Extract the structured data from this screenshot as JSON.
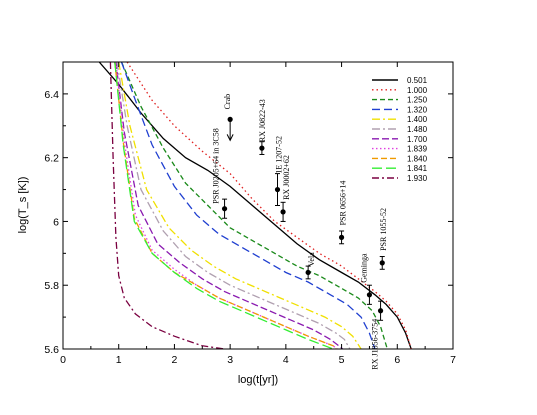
{
  "chart_data": {
    "type": "line",
    "xlabel": "log(t[yr])",
    "ylabel": "log(T_s [K])",
    "xlim": [
      0,
      7
    ],
    "ylim": [
      5.6,
      6.5
    ],
    "xticks": [
      "0",
      "1",
      "2",
      "3",
      "4",
      "5",
      "6",
      "7"
    ],
    "yticks": [
      "5.6",
      "5.8",
      "6",
      "6.2",
      "6.4"
    ],
    "legend_position": "top-right",
    "series": [
      {
        "name": "0.501",
        "color": "#000000",
        "dash": "",
        "x": [
          0.65,
          1.0,
          1.4,
          1.8,
          2.2,
          2.6,
          3.0,
          3.4,
          3.8,
          4.2,
          4.6,
          5.0,
          5.3,
          5.6,
          5.8,
          6.0,
          6.15,
          6.25
        ],
        "y": [
          6.5,
          6.43,
          6.34,
          6.26,
          6.2,
          6.16,
          6.11,
          6.05,
          5.99,
          5.93,
          5.88,
          5.84,
          5.81,
          5.77,
          5.74,
          5.7,
          5.65,
          5.6
        ]
      },
      {
        "name": "1.000",
        "color": "#e02020",
        "dash": "1.5,3",
        "x": [
          1.15,
          1.6,
          2.0,
          2.5,
          3.0,
          3.4,
          3.8,
          4.2,
          4.6,
          5.0,
          5.3,
          5.6,
          5.8,
          6.0,
          6.15,
          6.25
        ],
        "y": [
          6.5,
          6.38,
          6.3,
          6.22,
          6.15,
          6.07,
          6.0,
          5.95,
          5.9,
          5.86,
          5.82,
          5.78,
          5.75,
          5.71,
          5.66,
          5.6
        ]
      },
      {
        "name": "1.250",
        "color": "#1a8a1a",
        "dash": "5,3",
        "x": [
          1.05,
          1.4,
          1.8,
          2.2,
          2.6,
          3.0,
          3.4,
          3.8,
          4.2,
          4.6,
          5.0,
          5.3,
          5.55,
          5.7,
          5.82
        ],
        "y": [
          6.5,
          6.36,
          6.23,
          6.12,
          6.05,
          5.98,
          5.94,
          5.9,
          5.86,
          5.83,
          5.79,
          5.76,
          5.72,
          5.67,
          5.6
        ]
      },
      {
        "name": "1.320",
        "color": "#1f3fd0",
        "dash": "8,4",
        "x": [
          1.05,
          1.3,
          1.6,
          2.0,
          2.4,
          2.8,
          3.2,
          3.6,
          4.0,
          4.4,
          4.8,
          5.1,
          5.35,
          5.5,
          5.6
        ],
        "y": [
          6.5,
          6.38,
          6.24,
          6.11,
          6.02,
          5.96,
          5.92,
          5.88,
          5.84,
          5.81,
          5.77,
          5.74,
          5.7,
          5.65,
          5.6
        ]
      },
      {
        "name": "1.400",
        "color": "#f0e000",
        "dash": "8,3,2,3",
        "x": [
          1.0,
          1.2,
          1.5,
          1.9,
          2.3,
          2.7,
          3.1,
          3.5,
          3.9,
          4.3,
          4.7,
          5.0,
          5.2,
          5.35
        ],
        "y": [
          6.5,
          6.3,
          6.1,
          5.98,
          5.91,
          5.86,
          5.82,
          5.79,
          5.76,
          5.73,
          5.7,
          5.67,
          5.64,
          5.6
        ]
      },
      {
        "name": "1.480",
        "color": "#b0a0b0",
        "dash": "8,3,2,3",
        "x": [
          0.97,
          1.15,
          1.4,
          1.8,
          2.2,
          2.6,
          3.0,
          3.4,
          3.8,
          4.2,
          4.6,
          4.9,
          5.05,
          5.15
        ],
        "y": [
          6.5,
          6.3,
          6.1,
          5.97,
          5.89,
          5.84,
          5.8,
          5.77,
          5.74,
          5.71,
          5.68,
          5.65,
          5.63,
          5.6
        ]
      },
      {
        "name": "1.700",
        "color": "#8a1ab0",
        "dash": "7,3",
        "x": [
          0.95,
          1.1,
          1.35,
          1.7,
          2.1,
          2.5,
          2.9,
          3.3,
          3.7,
          4.1,
          4.5,
          4.8,
          4.95,
          5.02
        ],
        "y": [
          6.5,
          6.28,
          6.05,
          5.93,
          5.87,
          5.82,
          5.78,
          5.75,
          5.72,
          5.69,
          5.66,
          5.63,
          5.61,
          5.6
        ]
      },
      {
        "name": "1.839",
        "color": "#e040e0",
        "dash": "1.5,2.5",
        "x": [
          0.95,
          1.1,
          1.3,
          1.6,
          2.0,
          2.4,
          2.8,
          3.2,
          3.6,
          4.0,
          4.4,
          4.7,
          4.85,
          4.92
        ],
        "y": [
          6.5,
          6.25,
          6.02,
          5.91,
          5.85,
          5.8,
          5.76,
          5.73,
          5.7,
          5.67,
          5.64,
          5.62,
          5.61,
          5.6
        ]
      },
      {
        "name": "1.840",
        "color": "#f09a00",
        "dash": "6,3",
        "x": [
          0.93,
          1.08,
          1.28,
          1.6,
          2.0,
          2.4,
          2.8,
          3.2,
          3.6,
          4.0,
          4.4,
          4.7,
          4.85,
          4.9
        ],
        "y": [
          6.5,
          6.25,
          6.01,
          5.9,
          5.84,
          5.8,
          5.76,
          5.73,
          5.7,
          5.67,
          5.64,
          5.62,
          5.61,
          5.6
        ]
      },
      {
        "name": "1.841",
        "color": "#33ee33",
        "dash": "10,4",
        "x": [
          0.93,
          1.08,
          1.28,
          1.6,
          2.0,
          2.4,
          2.8,
          3.2,
          3.6,
          4.0,
          4.4,
          4.7,
          4.85,
          4.9
        ],
        "y": [
          6.5,
          6.24,
          6.0,
          5.9,
          5.84,
          5.79,
          5.75,
          5.72,
          5.69,
          5.66,
          5.63,
          5.61,
          5.6,
          5.59
        ]
      },
      {
        "name": "1.930",
        "color": "#7a0040",
        "dash": "7,3,2,3",
        "x": [
          0.85,
          0.9,
          0.95,
          1.0,
          1.1,
          1.3,
          1.6,
          2.0,
          2.5,
          2.9
        ],
        "y": [
          6.5,
          6.2,
          5.95,
          5.83,
          5.76,
          5.71,
          5.67,
          5.64,
          5.61,
          5.6
        ]
      }
    ],
    "observations": [
      {
        "name": "Crab",
        "x": 3.0,
        "y": 6.32,
        "kind": "upper-limit"
      },
      {
        "name": "RX J0822-43",
        "x": 3.57,
        "y": 6.23,
        "yerr": 0.02
      },
      {
        "name": "1E 1207-52",
        "x": 3.85,
        "y": 6.1,
        "yerr": 0.05
      },
      {
        "name": "RX J0002+62",
        "x": 3.95,
        "y": 6.03,
        "yerr": 0.03
      },
      {
        "name": "PSR J0205+64 in 3C58",
        "x": 2.9,
        "y": 6.04,
        "yerr": 0.03
      },
      {
        "name": "PSR 0656+14",
        "x": 5.0,
        "y": 5.95,
        "yerr": 0.02
      },
      {
        "name": "Vela",
        "x": 4.4,
        "y": 5.84,
        "yerr": 0.02
      },
      {
        "name": "Geminga",
        "x": 5.5,
        "y": 5.77,
        "yerr": 0.03
      },
      {
        "name": "PSR 1055-52",
        "x": 5.73,
        "y": 5.87,
        "yerr": 0.02
      },
      {
        "name": "RX J1856-3754",
        "x": 5.7,
        "y": 5.72,
        "yerr": 0.03
      }
    ]
  }
}
